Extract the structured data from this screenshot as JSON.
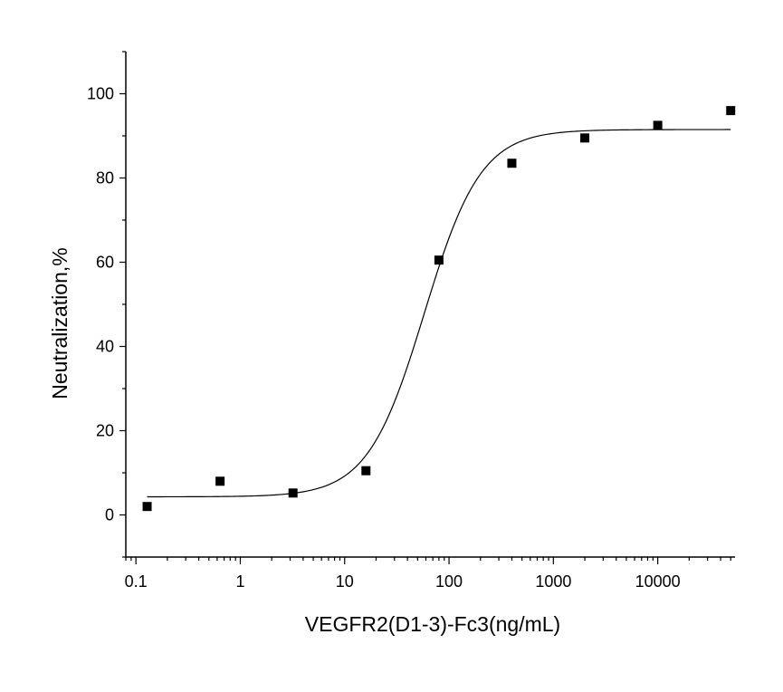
{
  "chart_data": {
    "type": "scatter",
    "title": "",
    "xlabel": "VEGFR2(D1-3)-Fc3(ng/mL)",
    "ylabel": "Neutralization,%",
    "xscale": "log",
    "xlim": [
      0.08,
      55000
    ],
    "ylim": [
      -10,
      110
    ],
    "x_ticks": [
      0.1,
      1,
      10,
      100,
      1000,
      10000
    ],
    "x_tick_labels": [
      "0.1",
      "1",
      "10",
      "100",
      "1000",
      "10000"
    ],
    "y_ticks": [
      0,
      20,
      40,
      60,
      80,
      100
    ],
    "y_tick_labels": [
      "0",
      "20",
      "40",
      "60",
      "80",
      "100"
    ],
    "grid": false,
    "legend": "none",
    "series": [
      {
        "marker": "square",
        "color": "#000000",
        "x": [
          0.128,
          0.64,
          3.2,
          16,
          80,
          400,
          2000,
          10000,
          50000
        ],
        "y": [
          2,
          8,
          5.2,
          10.5,
          60.5,
          83.5,
          89.5,
          92.5,
          96
        ]
      }
    ],
    "fit_curve": {
      "type": "four-parameter logistic",
      "color": "#000000",
      "bottom": 4.3,
      "top": 91.5,
      "ec50": 58,
      "hill": 1.6,
      "x_range": [
        0.128,
        50000
      ]
    }
  }
}
